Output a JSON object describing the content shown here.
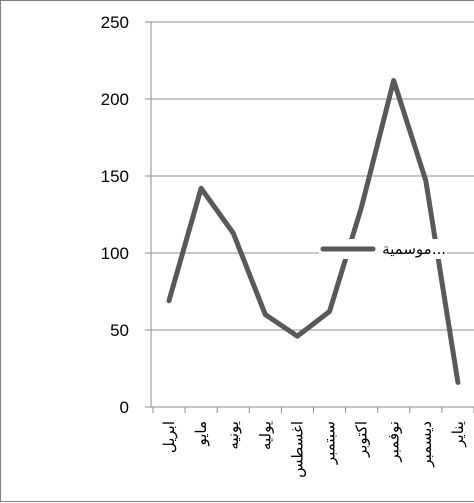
{
  "chart_data": {
    "type": "line",
    "categories": [
      "ابريل",
      "مايو",
      "يونيه",
      "يوليه",
      "اغسطس",
      "سبتمبر",
      "اكتوبر",
      "نوفمبر",
      "ديسمبر",
      "يناير"
    ],
    "series": [
      {
        "name": "موسمية...",
        "color": "#595959",
        "values": [
          69,
          142,
          113,
          60,
          46,
          62,
          130,
          212,
          147,
          16
        ]
      }
    ],
    "ylim": [
      0,
      250
    ],
    "yticks": [
      0,
      50,
      100,
      150,
      200,
      250
    ],
    "grid": true,
    "legend_position": "center-right",
    "title": "",
    "xlabel": "",
    "ylabel": ""
  }
}
